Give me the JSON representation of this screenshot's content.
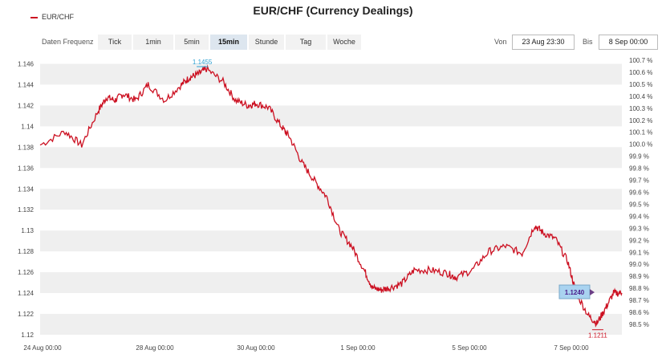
{
  "header": {
    "title": "EUR/CHF (Currency Dealings)",
    "legend_label": "EUR/CHF"
  },
  "toolbar": {
    "frequency_label": "Daten Frequenz",
    "frequencies": [
      "Tick",
      "1min",
      "5min",
      "15min",
      "Stunde",
      "Tag",
      "Woche"
    ],
    "active_frequency": "15min",
    "from_label": "Von",
    "from_value": "23 Aug 23:30",
    "to_label": "Bis",
    "to_value": "8 Sep 00:00"
  },
  "colors": {
    "line": "#cc1122",
    "band": "#efefef",
    "high_label": "#2b9fd0",
    "low_label": "#cc1122",
    "current_box": "#a9d3f0"
  },
  "chart_data": {
    "type": "line",
    "title": "EUR/CHF (Currency Dealings)",
    "series": [
      {
        "name": "EUR/CHF",
        "x": [
          0,
          0.3,
          0.5,
          0.7,
          0.8,
          0.9,
          1.0,
          1.15,
          1.3,
          1.5,
          1.7,
          1.8,
          1.9,
          2.0,
          2.2,
          2.35,
          2.5,
          2.6,
          2.75,
          2.9,
          3.0,
          3.15,
          3.3,
          3.45,
          3.6,
          3.75,
          3.9,
          4.0,
          4.1,
          4.2,
          4.35,
          4.5,
          4.7,
          4.9,
          5.0,
          5.2,
          5.4,
          5.6,
          5.8,
          5.95,
          6.05,
          6.2,
          6.35,
          6.45,
          6.6,
          6.7,
          6.8,
          6.9,
          7.0
        ],
        "y": [
          1.1382,
          1.1395,
          1.1382,
          1.1415,
          1.1428,
          1.1425,
          1.1431,
          1.1425,
          1.144,
          1.1425,
          1.144,
          1.1447,
          1.145,
          1.1455,
          1.1443,
          1.1425,
          1.142,
          1.1422,
          1.1418,
          1.14,
          1.139,
          1.1365,
          1.1348,
          1.1332,
          1.13,
          1.1285,
          1.1262,
          1.1245,
          1.1243,
          1.1245,
          1.1249,
          1.1262,
          1.1262,
          1.1259,
          1.1255,
          1.1262,
          1.128,
          1.1285,
          1.1278,
          1.1305,
          1.1298,
          1.1292,
          1.127,
          1.124,
          1.1218,
          1.1211,
          1.1225,
          1.124,
          1.124
        ]
      }
    ],
    "x_ticks": [
      "24 Aug 00:00",
      "28 Aug 00:00",
      "30 Aug 00:00",
      "1 Sep 00:00",
      "5 Sep 00:00",
      "7 Sep 00:00"
    ],
    "y_ticks_left": [
      "1.146",
      "1.144",
      "1.142",
      "1.14",
      "1.138",
      "1.136",
      "1.134",
      "1.132",
      "1.13",
      "1.128",
      "1.126",
      "1.124",
      "1.122",
      "1.12"
    ],
    "y_ticks_right": [
      "100.7 %",
      "100.6 %",
      "100.5 %",
      "100.4 %",
      "100.3 %",
      "100.2 %",
      "100.1 %",
      "100.0 %",
      "99.9 %",
      "99.8 %",
      "99.7 %",
      "99.6 %",
      "99.5 %",
      "99.4 %",
      "99.3 %",
      "99.2 %",
      "99.1 %",
      "99.0 %",
      "98.9 %",
      "98.8 %",
      "98.7 %",
      "98.6 %",
      "98.5 %"
    ],
    "ylim": [
      1.12,
      1.1465
    ],
    "grid": "alternating horizontal bands",
    "annotations": {
      "high": "1.1455",
      "low": "1.1211",
      "current": "1.1240"
    }
  }
}
